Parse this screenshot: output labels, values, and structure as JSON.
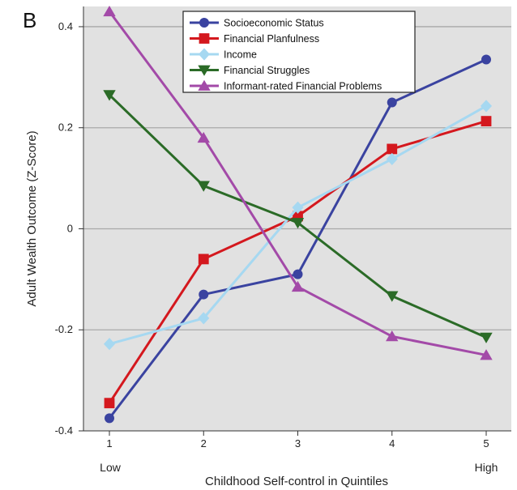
{
  "panel_label": "B",
  "chart_data": {
    "type": "line",
    "xlabel": "Childhood Self-control in Quintiles",
    "ylabel": "Adult Wealth Outcome (Z-Score)",
    "x": [
      1,
      2,
      3,
      4,
      5
    ],
    "x_tick_labels": [
      "1",
      "2",
      "3",
      "4",
      "5"
    ],
    "x_end_labels": {
      "low": "Low",
      "high": "High"
    },
    "ylim": [
      -0.4,
      0.44
    ],
    "y_ticks": [
      0.4,
      0.2,
      0,
      -0.2,
      -0.4
    ],
    "y_tick_labels": [
      "0.4",
      "0.2",
      "0",
      "-0.2",
      "-0.4"
    ],
    "grid": "horizontal",
    "legend_position": "top",
    "background_color": "#e1e1e1",
    "series": [
      {
        "name": "Socioeconomic Status",
        "color": "#3a43a0",
        "marker": "circle",
        "values": [
          -0.375,
          -0.13,
          -0.09,
          0.25,
          0.335
        ]
      },
      {
        "name": "Financial Planfulness",
        "color": "#d4181e",
        "marker": "square",
        "values": [
          -0.345,
          -0.06,
          0.025,
          0.158,
          0.213
        ]
      },
      {
        "name": "Income",
        "color": "#a6d8f1",
        "marker": "diamond",
        "values": [
          -0.228,
          -0.177,
          0.042,
          0.138,
          0.243
        ]
      },
      {
        "name": "Financial Struggles",
        "color": "#2b6b27",
        "marker": "triangle-down",
        "values": [
          0.265,
          0.085,
          0.012,
          -0.133,
          -0.215
        ]
      },
      {
        "name": "Informant-rated Financial Problems",
        "color": "#a34aa8",
        "marker": "triangle-up",
        "values": [
          0.43,
          0.18,
          -0.115,
          -0.213,
          -0.25
        ]
      }
    ]
  }
}
